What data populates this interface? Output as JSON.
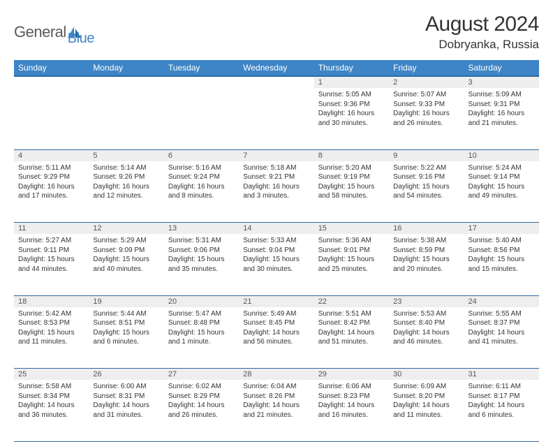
{
  "logo": {
    "text1": "General",
    "text2": "Blue"
  },
  "title": "August 2024",
  "location": "Dobryanka, Russia",
  "colors": {
    "header_bg": "#3d85c6",
    "header_border": "#2c6aa0",
    "daynum_bg": "#eeeeee",
    "text": "#333333"
  },
  "weekdays": [
    "Sunday",
    "Monday",
    "Tuesday",
    "Wednesday",
    "Thursday",
    "Friday",
    "Saturday"
  ],
  "weeks": [
    {
      "nums": [
        "",
        "",
        "",
        "",
        "1",
        "2",
        "3"
      ],
      "cells": [
        null,
        null,
        null,
        null,
        {
          "sunrise": "5:05 AM",
          "sunset": "9:36 PM",
          "daylight": "16 hours and 30 minutes."
        },
        {
          "sunrise": "5:07 AM",
          "sunset": "9:33 PM",
          "daylight": "16 hours and 26 minutes."
        },
        {
          "sunrise": "5:09 AM",
          "sunset": "9:31 PM",
          "daylight": "16 hours and 21 minutes."
        }
      ]
    },
    {
      "nums": [
        "4",
        "5",
        "6",
        "7",
        "8",
        "9",
        "10"
      ],
      "cells": [
        {
          "sunrise": "5:11 AM",
          "sunset": "9:29 PM",
          "daylight": "16 hours and 17 minutes."
        },
        {
          "sunrise": "5:14 AM",
          "sunset": "9:26 PM",
          "daylight": "16 hours and 12 minutes."
        },
        {
          "sunrise": "5:16 AM",
          "sunset": "9:24 PM",
          "daylight": "16 hours and 8 minutes."
        },
        {
          "sunrise": "5:18 AM",
          "sunset": "9:21 PM",
          "daylight": "16 hours and 3 minutes."
        },
        {
          "sunrise": "5:20 AM",
          "sunset": "9:19 PM",
          "daylight": "15 hours and 58 minutes."
        },
        {
          "sunrise": "5:22 AM",
          "sunset": "9:16 PM",
          "daylight": "15 hours and 54 minutes."
        },
        {
          "sunrise": "5:24 AM",
          "sunset": "9:14 PM",
          "daylight": "15 hours and 49 minutes."
        }
      ]
    },
    {
      "nums": [
        "11",
        "12",
        "13",
        "14",
        "15",
        "16",
        "17"
      ],
      "cells": [
        {
          "sunrise": "5:27 AM",
          "sunset": "9:11 PM",
          "daylight": "15 hours and 44 minutes."
        },
        {
          "sunrise": "5:29 AM",
          "sunset": "9:09 PM",
          "daylight": "15 hours and 40 minutes."
        },
        {
          "sunrise": "5:31 AM",
          "sunset": "9:06 PM",
          "daylight": "15 hours and 35 minutes."
        },
        {
          "sunrise": "5:33 AM",
          "sunset": "9:04 PM",
          "daylight": "15 hours and 30 minutes."
        },
        {
          "sunrise": "5:36 AM",
          "sunset": "9:01 PM",
          "daylight": "15 hours and 25 minutes."
        },
        {
          "sunrise": "5:38 AM",
          "sunset": "8:59 PM",
          "daylight": "15 hours and 20 minutes."
        },
        {
          "sunrise": "5:40 AM",
          "sunset": "8:56 PM",
          "daylight": "15 hours and 15 minutes."
        }
      ]
    },
    {
      "nums": [
        "18",
        "19",
        "20",
        "21",
        "22",
        "23",
        "24"
      ],
      "cells": [
        {
          "sunrise": "5:42 AM",
          "sunset": "8:53 PM",
          "daylight": "15 hours and 11 minutes."
        },
        {
          "sunrise": "5:44 AM",
          "sunset": "8:51 PM",
          "daylight": "15 hours and 6 minutes."
        },
        {
          "sunrise": "5:47 AM",
          "sunset": "8:48 PM",
          "daylight": "15 hours and 1 minute."
        },
        {
          "sunrise": "5:49 AM",
          "sunset": "8:45 PM",
          "daylight": "14 hours and 56 minutes."
        },
        {
          "sunrise": "5:51 AM",
          "sunset": "8:42 PM",
          "daylight": "14 hours and 51 minutes."
        },
        {
          "sunrise": "5:53 AM",
          "sunset": "8:40 PM",
          "daylight": "14 hours and 46 minutes."
        },
        {
          "sunrise": "5:55 AM",
          "sunset": "8:37 PM",
          "daylight": "14 hours and 41 minutes."
        }
      ]
    },
    {
      "nums": [
        "25",
        "26",
        "27",
        "28",
        "29",
        "30",
        "31"
      ],
      "cells": [
        {
          "sunrise": "5:58 AM",
          "sunset": "8:34 PM",
          "daylight": "14 hours and 36 minutes."
        },
        {
          "sunrise": "6:00 AM",
          "sunset": "8:31 PM",
          "daylight": "14 hours and 31 minutes."
        },
        {
          "sunrise": "6:02 AM",
          "sunset": "8:29 PM",
          "daylight": "14 hours and 26 minutes."
        },
        {
          "sunrise": "6:04 AM",
          "sunset": "8:26 PM",
          "daylight": "14 hours and 21 minutes."
        },
        {
          "sunrise": "6:06 AM",
          "sunset": "8:23 PM",
          "daylight": "14 hours and 16 minutes."
        },
        {
          "sunrise": "6:09 AM",
          "sunset": "8:20 PM",
          "daylight": "14 hours and 11 minutes."
        },
        {
          "sunrise": "6:11 AM",
          "sunset": "8:17 PM",
          "daylight": "14 hours and 6 minutes."
        }
      ]
    }
  ],
  "labels": {
    "sunrise": "Sunrise: ",
    "sunset": "Sunset: ",
    "daylight": "Daylight: "
  }
}
